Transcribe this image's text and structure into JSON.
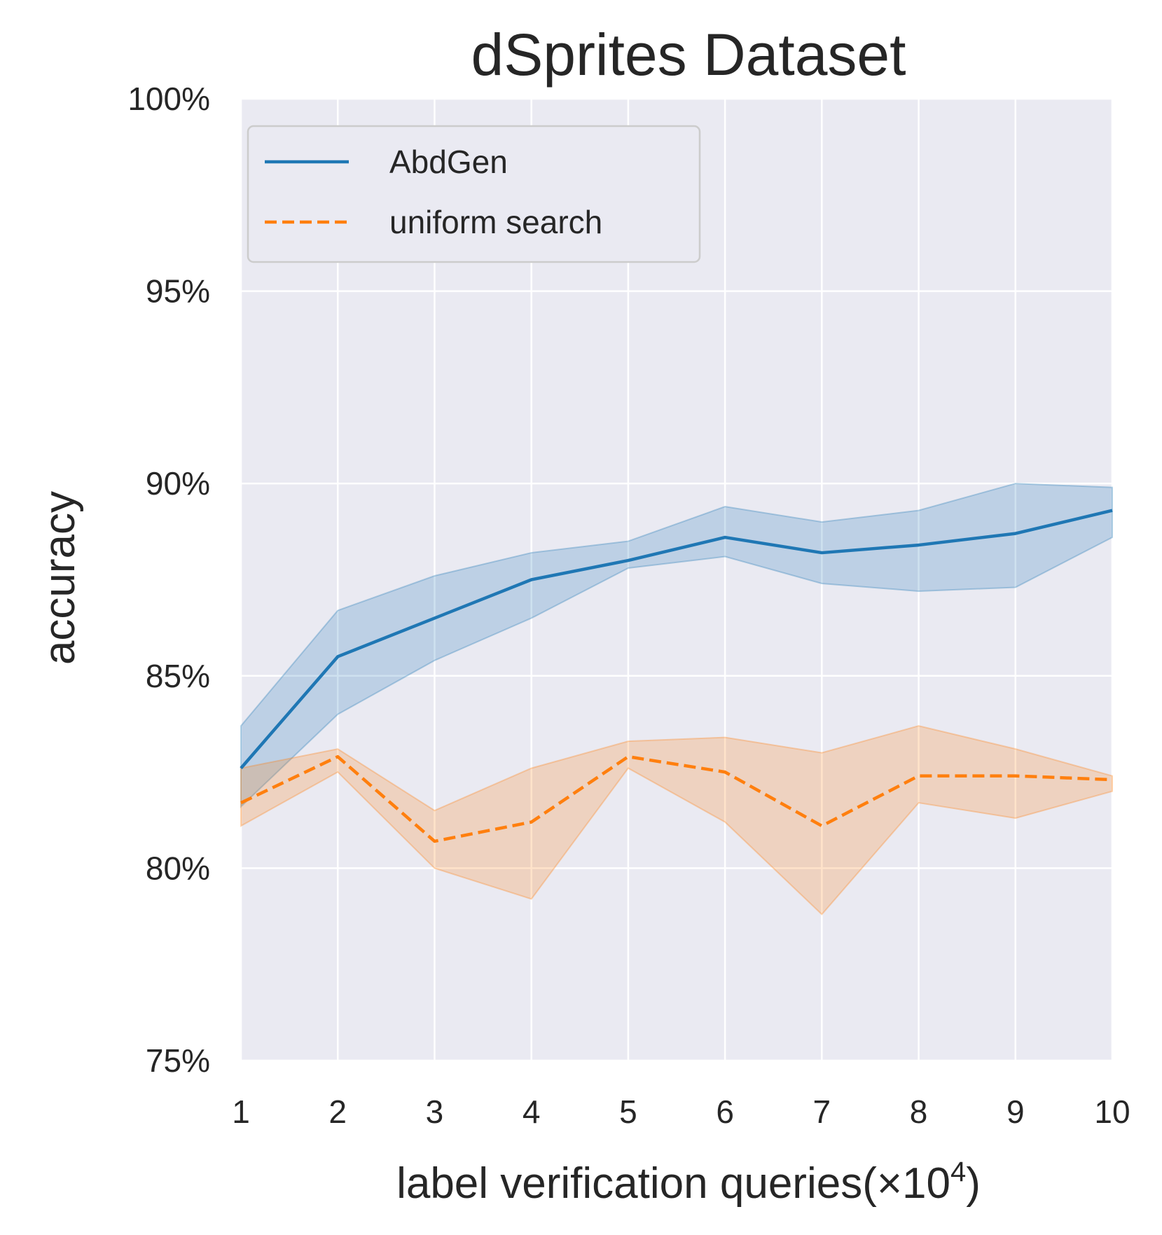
{
  "chart_data": {
    "type": "line",
    "title": "dSprites Dataset",
    "xlabel": "label verification queries(×10⁴)",
    "ylabel": "accuracy",
    "x": [
      1,
      2,
      3,
      4,
      5,
      6,
      7,
      8,
      9,
      10
    ],
    "xlim": [
      1,
      10
    ],
    "ylim": [
      75,
      100
    ],
    "yticks": [
      "75%",
      "80%",
      "85%",
      "90%",
      "95%",
      "100%"
    ],
    "xticks": [
      "1",
      "2",
      "3",
      "4",
      "5",
      "6",
      "7",
      "8",
      "9",
      "10"
    ],
    "grid": true,
    "legend_position": "top-left",
    "series": [
      {
        "name": "AbdGen",
        "style": "solid",
        "color": "#1f77b4",
        "values": [
          82.6,
          85.5,
          86.5,
          87.5,
          88.0,
          88.6,
          88.2,
          88.4,
          88.7,
          89.3
        ],
        "lower": [
          81.6,
          84.0,
          85.4,
          86.5,
          87.8,
          88.1,
          87.4,
          87.2,
          87.3,
          88.6
        ],
        "upper": [
          83.7,
          86.7,
          87.6,
          88.2,
          88.5,
          89.4,
          89.0,
          89.3,
          90.0,
          89.9
        ]
      },
      {
        "name": "uniform search",
        "style": "dashed",
        "color": "#ff7f0e",
        "values": [
          81.7,
          82.9,
          80.7,
          81.2,
          82.9,
          82.5,
          81.1,
          82.4,
          82.4,
          82.3
        ],
        "lower": [
          81.1,
          82.5,
          80.0,
          79.2,
          82.6,
          81.2,
          78.8,
          81.7,
          81.3,
          82.0
        ],
        "upper": [
          82.6,
          83.1,
          81.5,
          82.6,
          83.3,
          83.4,
          83.0,
          83.7,
          83.1,
          82.4
        ]
      }
    ]
  },
  "colors": {
    "plot_background": "#eaeaf2",
    "grid": "#ffffff",
    "text": "#262626"
  }
}
